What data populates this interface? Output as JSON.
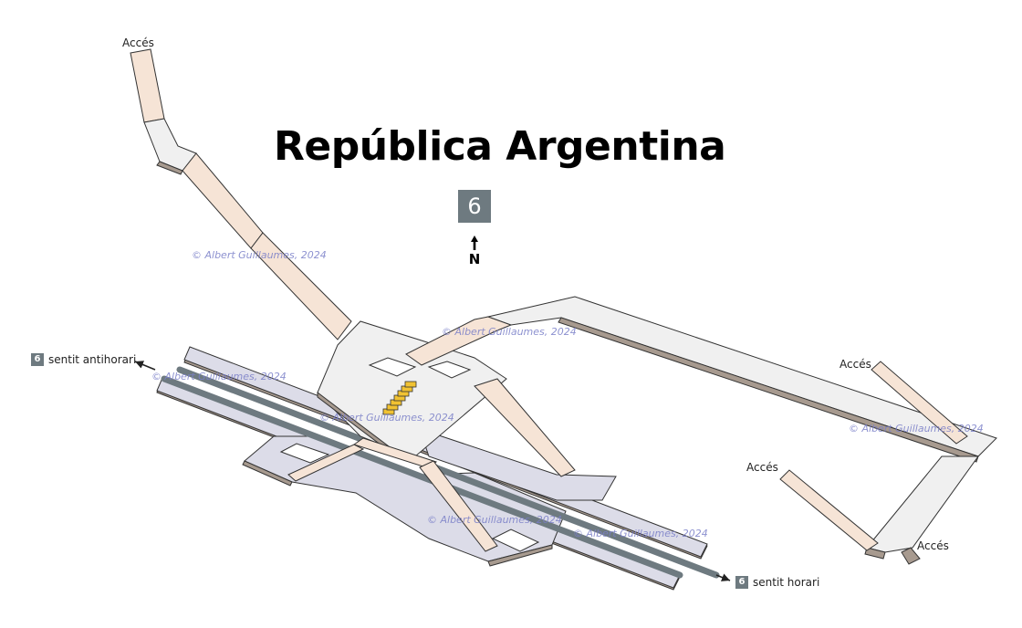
{
  "station": {
    "title": "República Argentina",
    "line_number": "6",
    "line_color": "#6e7a80"
  },
  "compass": {
    "label": "N"
  },
  "access_labels": [
    "Accés",
    "Accés",
    "Accés",
    "Accés"
  ],
  "directions": {
    "west": {
      "badge": "6",
      "label": "sentit antihorari"
    },
    "east": {
      "badge": "6",
      "label": "sentit horari"
    }
  },
  "watermark": "© Albert Guillaumes, 2024",
  "colors": {
    "corridor": "#f0f0f0",
    "stair_corridor": "#f6e4d6",
    "platform": "#dcdce8",
    "track": "#6e7a80",
    "escalator": "#f1c232",
    "outline": "#333333"
  }
}
